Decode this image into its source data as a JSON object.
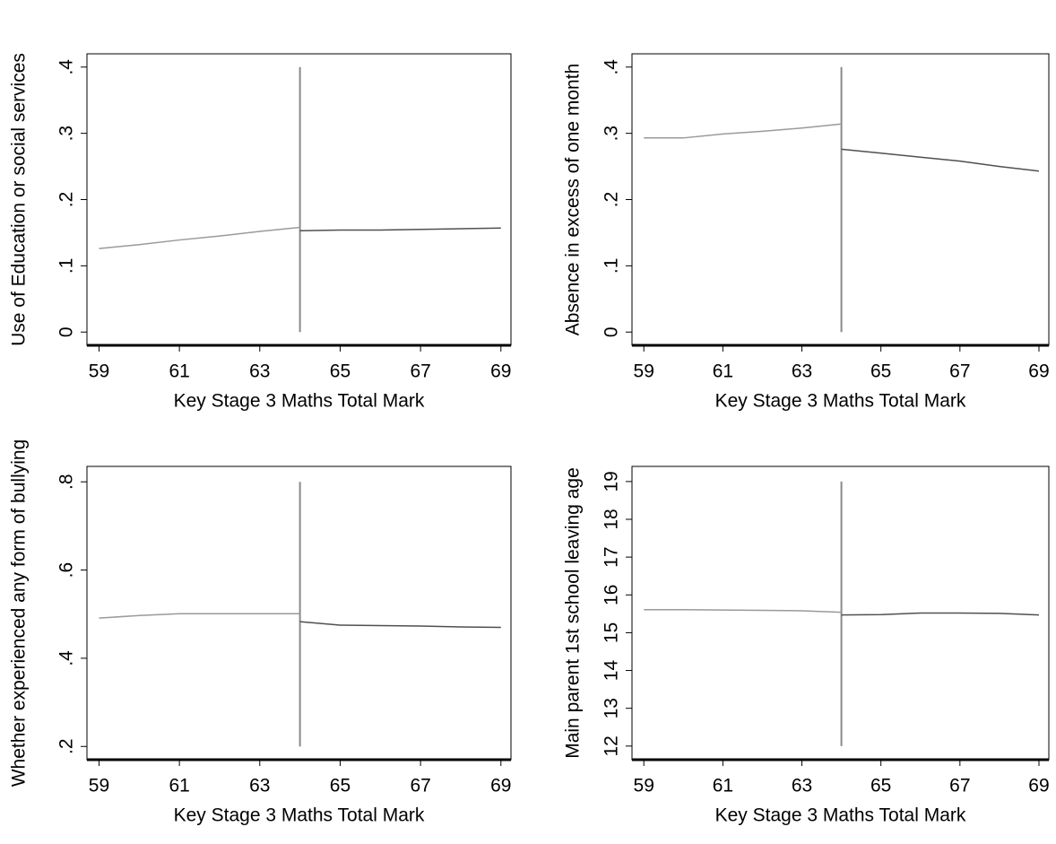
{
  "chart_data": [
    {
      "type": "line",
      "x_label": "Key Stage 3 Maths Total Mark",
      "y_label": "Use of Education or social services",
      "x": [
        59,
        60,
        61,
        62,
        63,
        64,
        65,
        66,
        67,
        68,
        69
      ],
      "series": [
        {
          "color": "#9a9a9a",
          "values": [
            0.126,
            0.132,
            0.139,
            0.145,
            0.152,
            0.158,
            null,
            null,
            null,
            null,
            null
          ]
        },
        {
          "color": "#505050",
          "values": [
            null,
            null,
            null,
            null,
            null,
            0.153,
            0.154,
            0.154,
            0.155,
            0.156,
            0.157
          ]
        }
      ],
      "reference_line": {
        "x": 64,
        "color": "#8a8a8a"
      },
      "xlim": [
        58.7,
        69.25
      ],
      "xticks": [
        59,
        61,
        63,
        65,
        67,
        69
      ],
      "ylim": [
        -0.02,
        0.42
      ],
      "yticks": [
        0,
        {
          "value": 0.1,
          "label": ".1"
        },
        {
          "value": 0.2,
          "label": ".2"
        },
        {
          "value": 0.3,
          "label": ".3"
        },
        {
          "value": 0.4,
          "label": ".4"
        }
      ]
    },
    {
      "type": "line",
      "x_label": "Key Stage 3 Maths Total Mark",
      "y_label": "Absence in excess of one month",
      "x": [
        59,
        60,
        61,
        62,
        63,
        64,
        65,
        66,
        67,
        68,
        69
      ],
      "series": [
        {
          "color": "#9a9a9a",
          "values": [
            0.293,
            0.293,
            0.299,
            0.303,
            0.308,
            0.314,
            null,
            null,
            null,
            null,
            null
          ]
        },
        {
          "color": "#505050",
          "values": [
            null,
            null,
            null,
            null,
            null,
            0.276,
            0.27,
            0.264,
            0.258,
            0.25,
            0.243
          ]
        }
      ],
      "reference_line": {
        "x": 64,
        "color": "#8a8a8a"
      },
      "xlim": [
        58.7,
        69.25
      ],
      "xticks": [
        59,
        61,
        63,
        65,
        67,
        69
      ],
      "ylim": [
        -0.02,
        0.42
      ],
      "yticks": [
        0,
        {
          "value": 0.1,
          "label": ".1"
        },
        {
          "value": 0.2,
          "label": ".2"
        },
        {
          "value": 0.3,
          "label": ".3"
        },
        {
          "value": 0.4,
          "label": ".4"
        }
      ]
    },
    {
      "type": "line",
      "x_label": "Key Stage 3 Maths Total Mark",
      "y_label": "Whether experienced any form of bullying",
      "x": [
        59,
        60,
        61,
        62,
        63,
        64,
        65,
        66,
        67,
        68,
        69
      ],
      "series": [
        {
          "color": "#9a9a9a",
          "values": [
            0.491,
            0.497,
            0.501,
            0.501,
            0.501,
            0.501,
            null,
            null,
            null,
            null,
            null
          ]
        },
        {
          "color": "#505050",
          "values": [
            null,
            null,
            null,
            null,
            null,
            0.483,
            0.475,
            0.474,
            0.473,
            0.471,
            0.47
          ]
        }
      ],
      "reference_line": {
        "x": 64,
        "color": "#8a8a8a"
      },
      "xlim": [
        58.7,
        69.25
      ],
      "xticks": [
        59,
        61,
        63,
        65,
        67,
        69
      ],
      "ylim": [
        0.17,
        0.835
      ],
      "yticks": [
        {
          "value": 0.2,
          "label": ".2"
        },
        {
          "value": 0.4,
          "label": ".4"
        },
        {
          "value": 0.6,
          "label": ".6"
        },
        {
          "value": 0.8,
          "label": ".8"
        }
      ]
    },
    {
      "type": "line",
      "x_label": "Key Stage 3 Maths Total Mark",
      "y_label": "Main parent 1st school leaving age",
      "x": [
        59,
        60,
        61,
        62,
        63,
        64,
        65,
        66,
        67,
        68,
        69
      ],
      "series": [
        {
          "color": "#9a9a9a",
          "values": [
            15.61,
            15.61,
            15.6,
            15.59,
            15.58,
            15.54,
            null,
            null,
            null,
            null,
            null
          ]
        },
        {
          "color": "#505050",
          "values": [
            null,
            null,
            null,
            null,
            null,
            15.47,
            15.48,
            15.52,
            15.52,
            15.51,
            15.47
          ]
        }
      ],
      "reference_line": {
        "x": 64,
        "color": "#8a8a8a"
      },
      "xlim": [
        58.7,
        69.25
      ],
      "xticks": [
        59,
        61,
        63,
        65,
        67,
        69
      ],
      "ylim": [
        11.64,
        19.4
      ],
      "yticks": [
        12,
        13,
        14,
        15,
        16,
        17,
        18,
        19
      ]
    }
  ]
}
